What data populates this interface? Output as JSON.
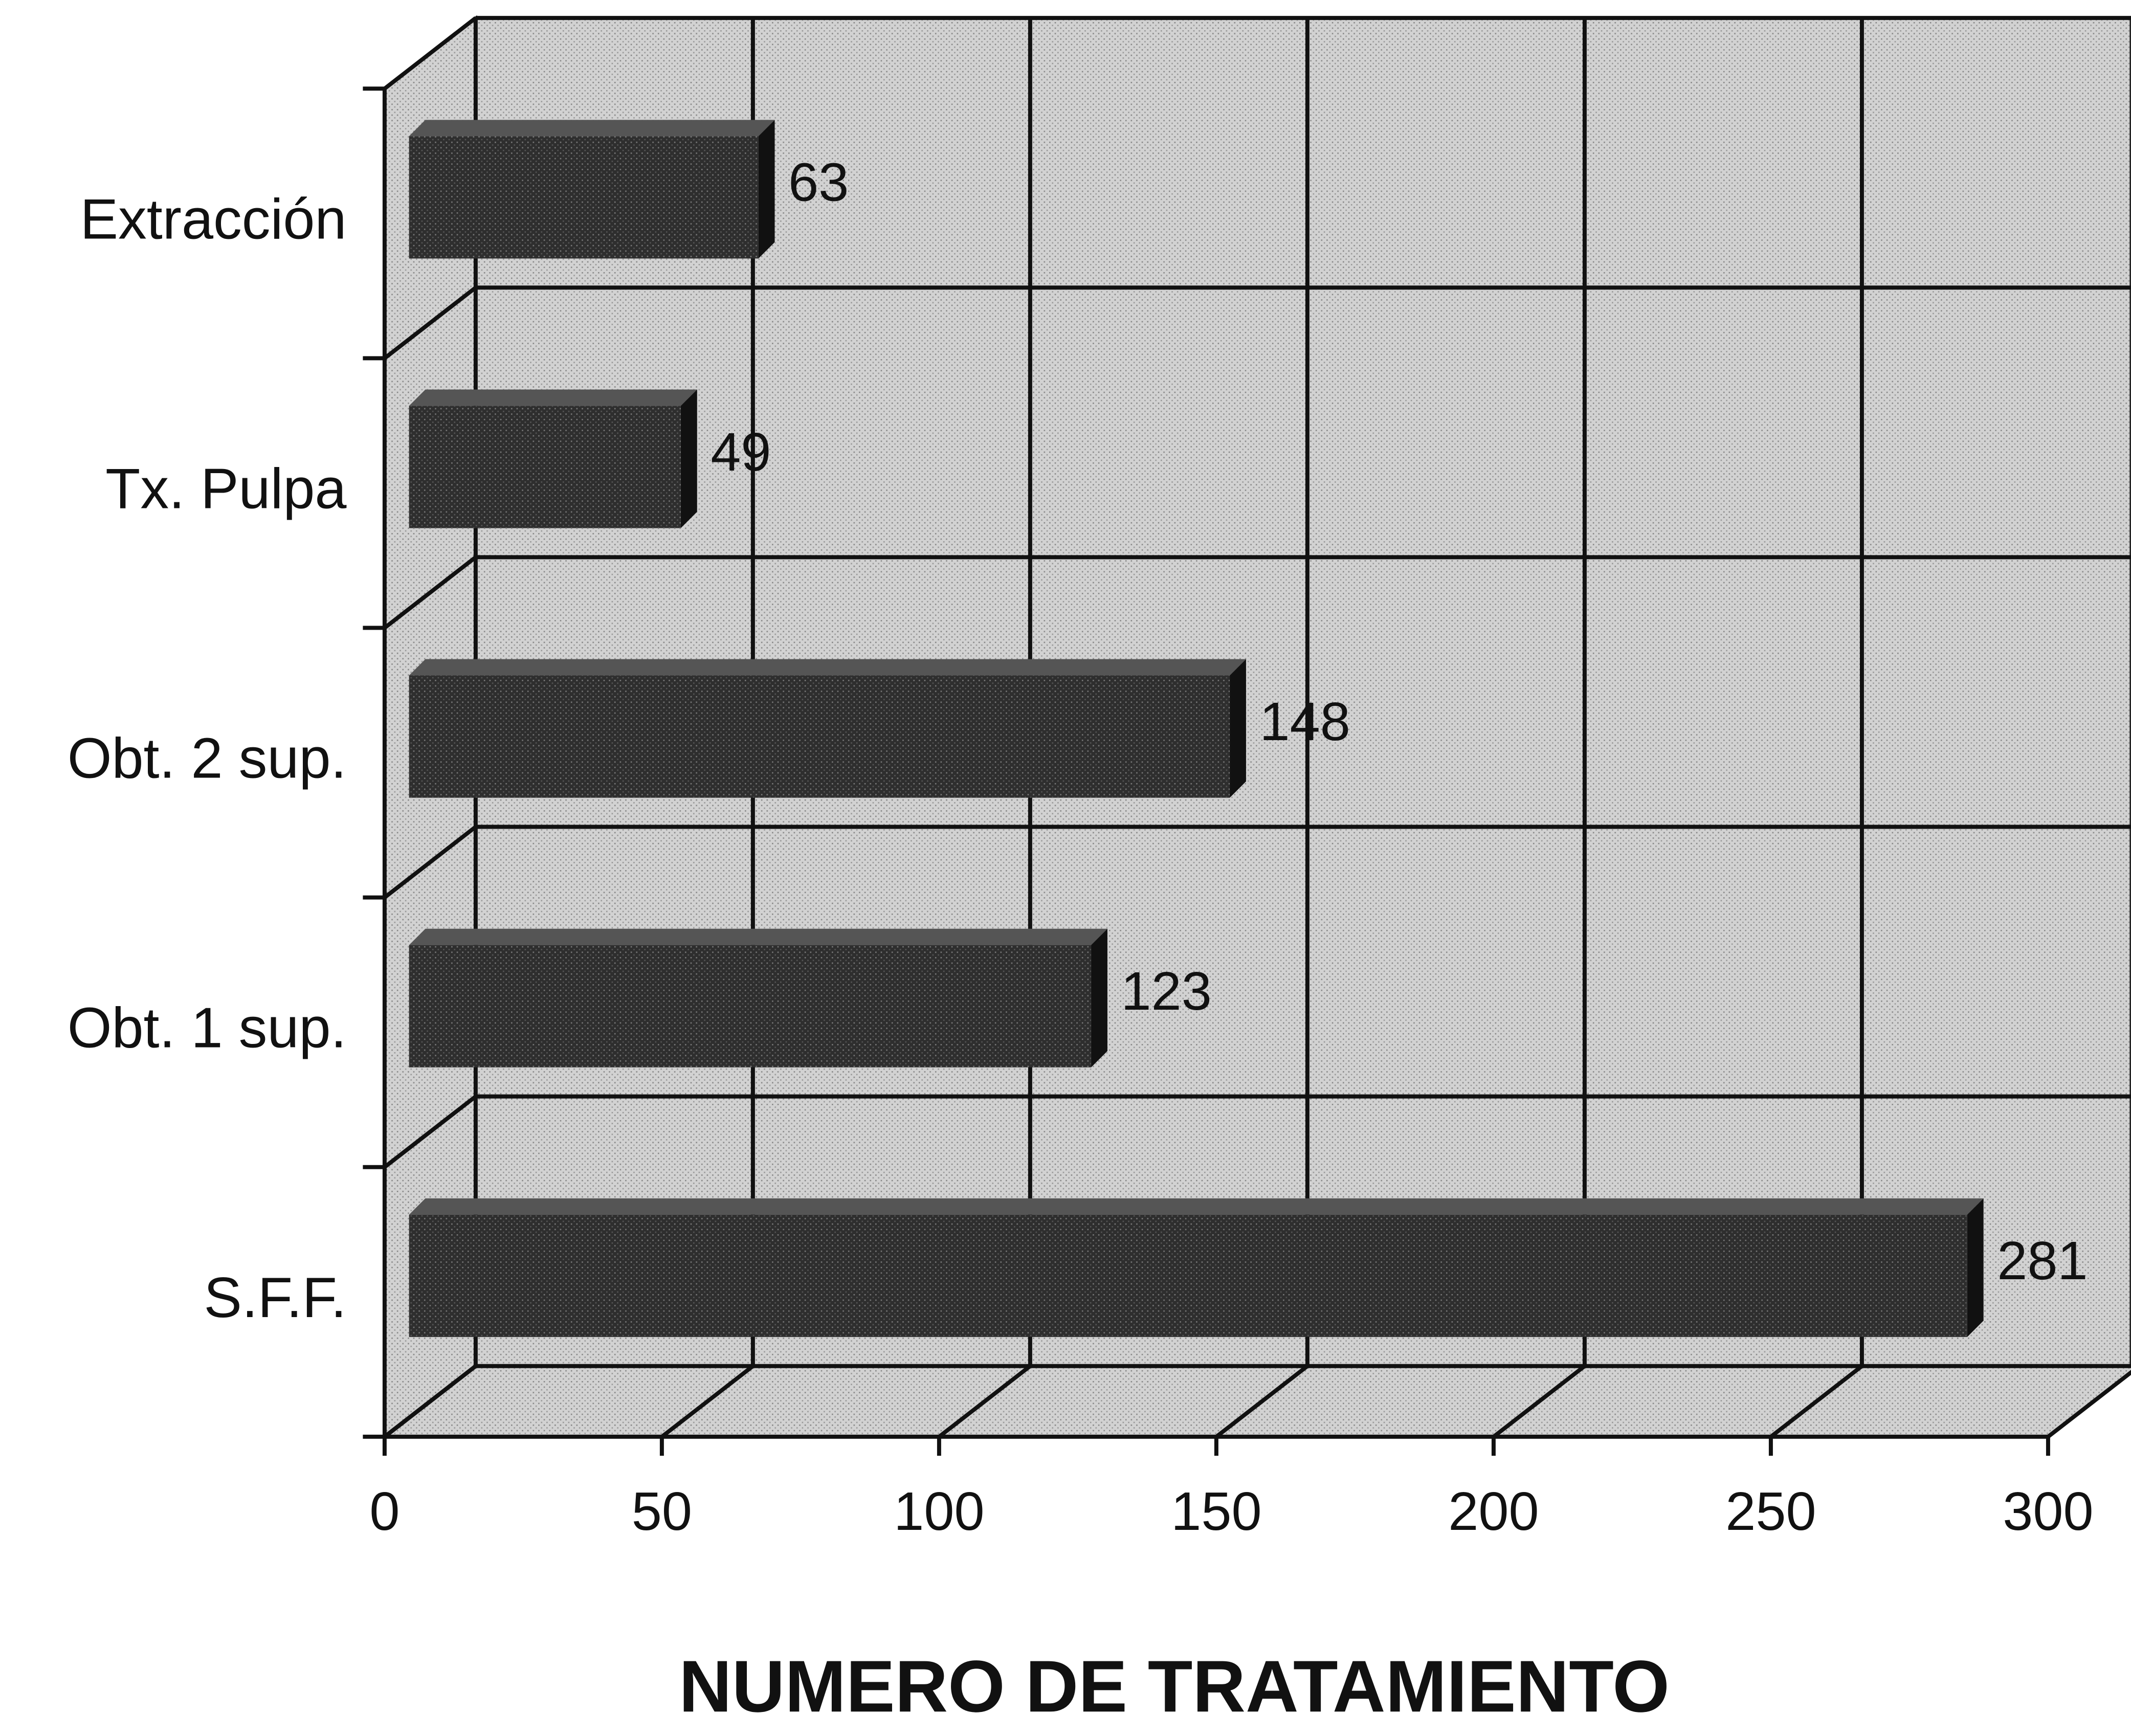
{
  "chart_data": {
    "type": "bar",
    "orientation": "horizontal",
    "categories": [
      "Extracción",
      "Tx. Pulpa",
      "Obt. 2 sup.",
      "Obt. 1 sup.",
      "S.F.F."
    ],
    "values": [
      63,
      49,
      148,
      123,
      281
    ],
    "color": "#2e2e2e",
    "xlabel": "NUMERO DE TRATAMIENTO",
    "xlim": [
      0,
      300
    ],
    "xticks": [
      0,
      50,
      100,
      150,
      200,
      250,
      300
    ],
    "grid": true
  }
}
